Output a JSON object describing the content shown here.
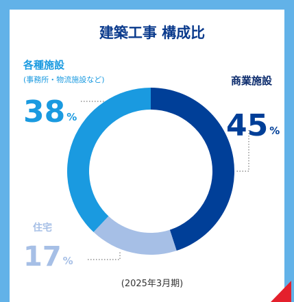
{
  "chart_data": {
    "type": "donut",
    "title": "建築工事 構成比",
    "categories": [
      "商業施設",
      "住宅",
      "各種施設"
    ],
    "values": [
      45,
      17,
      38
    ],
    "unit": "%",
    "colors": [
      "#003f98",
      "#a6bfe6",
      "#1a9ae0"
    ],
    "annotations": [
      "(事務所・物流施設など)"
    ],
    "caption": "(2025年3月期)"
  }
}
